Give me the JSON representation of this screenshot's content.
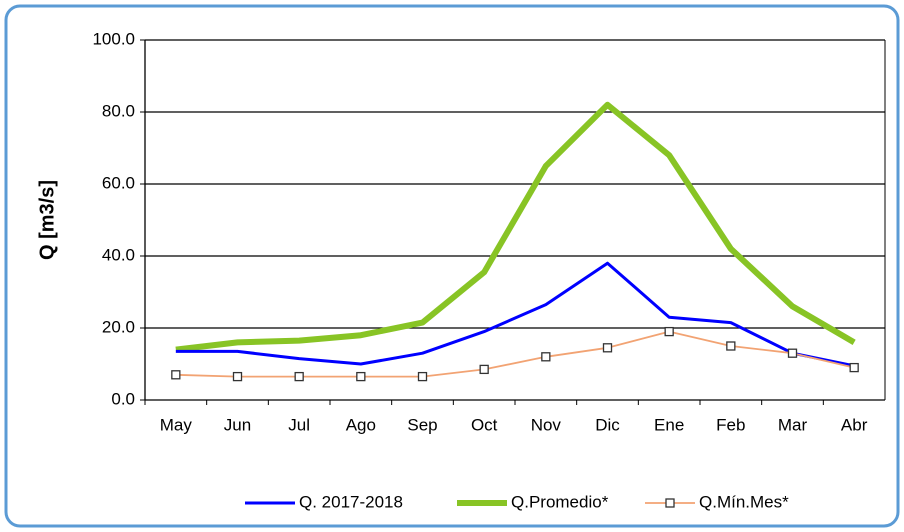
{
  "chart_data": {
    "type": "line",
    "y_label": "Q [m3/s]",
    "categories": [
      "May",
      "Jun",
      "Jul",
      "Ago",
      "Sep",
      "Oct",
      "Nov",
      "Dic",
      "Ene",
      "Feb",
      "Mar",
      "Abr"
    ],
    "series": [
      {
        "name": "Q. 2017-2018",
        "color": "#0000ff",
        "values": [
          13.5,
          13.5,
          11.5,
          10,
          13,
          19,
          26.5,
          38,
          23,
          21.5,
          13,
          9.5
        ]
      },
      {
        "name": "Q.Promedio*",
        "color": "#88c425",
        "values": [
          14,
          16,
          16.5,
          18,
          21.5,
          35.5,
          65,
          82,
          68,
          42,
          26,
          16
        ]
      },
      {
        "name": "Q.Mín.Mes*",
        "color": "#f2a373",
        "values": [
          7,
          6.5,
          6.5,
          6.5,
          6.5,
          8.5,
          12,
          14.5,
          19,
          15,
          13,
          9
        ]
      }
    ],
    "ylim": [
      0,
      100
    ],
    "yticks": [
      {
        "value": 0,
        "label": "0.0"
      },
      {
        "value": 20,
        "label": "20.0"
      },
      {
        "value": 40,
        "label": "40.0"
      },
      {
        "value": 60,
        "label": "60.0"
      },
      {
        "value": 80,
        "label": "80.0"
      },
      {
        "value": 100,
        "label": "100.0"
      }
    ],
    "grid": true
  }
}
